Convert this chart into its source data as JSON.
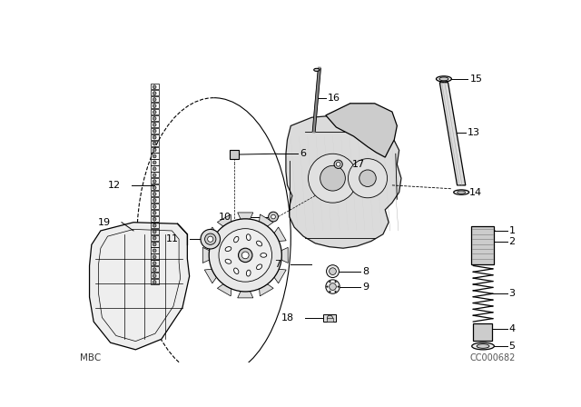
{
  "background_color": "#ffffff",
  "line_color": "#000000",
  "text_color": "#000000",
  "fig_width": 6.4,
  "fig_height": 4.48,
  "dpi": 100,
  "watermark_left": "MBC",
  "watermark_right": "CC000682"
}
